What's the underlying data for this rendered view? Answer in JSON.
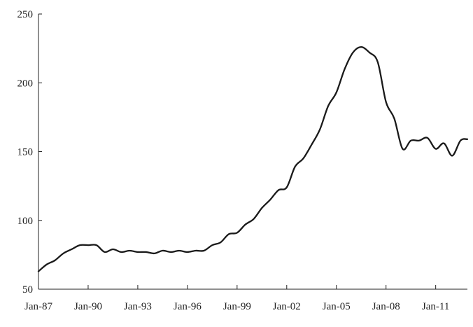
{
  "chart_data": {
    "type": "line",
    "title": "",
    "xlabel": "",
    "ylabel": "",
    "ylim": [
      50,
      250
    ],
    "y_ticks": [
      50,
      100,
      150,
      200,
      250
    ],
    "x_tick_labels": [
      "Jan-87",
      "Jan-90",
      "Jan-93",
      "Jan-96",
      "Jan-99",
      "Jan-02",
      "Jan-05",
      "Jan-08",
      "Jan-11"
    ],
    "x_range": [
      "1987-01",
      "2012-12"
    ],
    "grid": false,
    "line_color": "#1a1a1a",
    "series": [
      {
        "x": [
          "1987-01",
          "1987-07",
          "1988-01",
          "1988-07",
          "1989-01",
          "1989-07",
          "1990-01",
          "1990-07",
          "1991-01",
          "1991-07",
          "1992-01",
          "1992-07",
          "1993-01",
          "1993-07",
          "1994-01",
          "1994-07",
          "1995-01",
          "1995-07",
          "1996-01",
          "1996-07",
          "1997-01",
          "1997-07",
          "1998-01",
          "1998-07",
          "1999-01",
          "1999-07",
          "2000-01",
          "2000-07",
          "2001-01",
          "2001-07",
          "2002-01",
          "2002-07",
          "2003-01",
          "2003-07",
          "2004-01",
          "2004-07",
          "2005-01",
          "2005-07",
          "2006-01",
          "2006-07",
          "2007-01",
          "2007-07",
          "2008-01",
          "2008-07",
          "2009-01",
          "2009-07",
          "2010-01",
          "2010-07",
          "2011-01",
          "2011-07",
          "2012-01",
          "2012-07",
          "2012-12"
        ],
        "values": [
          63,
          68,
          71,
          76,
          79,
          82,
          82,
          82,
          77,
          79,
          77,
          78,
          77,
          77,
          76,
          78,
          77,
          78,
          77,
          78,
          78,
          82,
          84,
          90,
          91,
          97,
          101,
          109,
          115,
          122,
          124,
          139,
          145,
          155,
          166,
          183,
          193,
          210,
          222,
          226,
          222,
          215,
          186,
          174,
          152,
          158,
          158,
          160,
          152,
          156,
          147,
          158,
          159
        ]
      }
    ]
  }
}
